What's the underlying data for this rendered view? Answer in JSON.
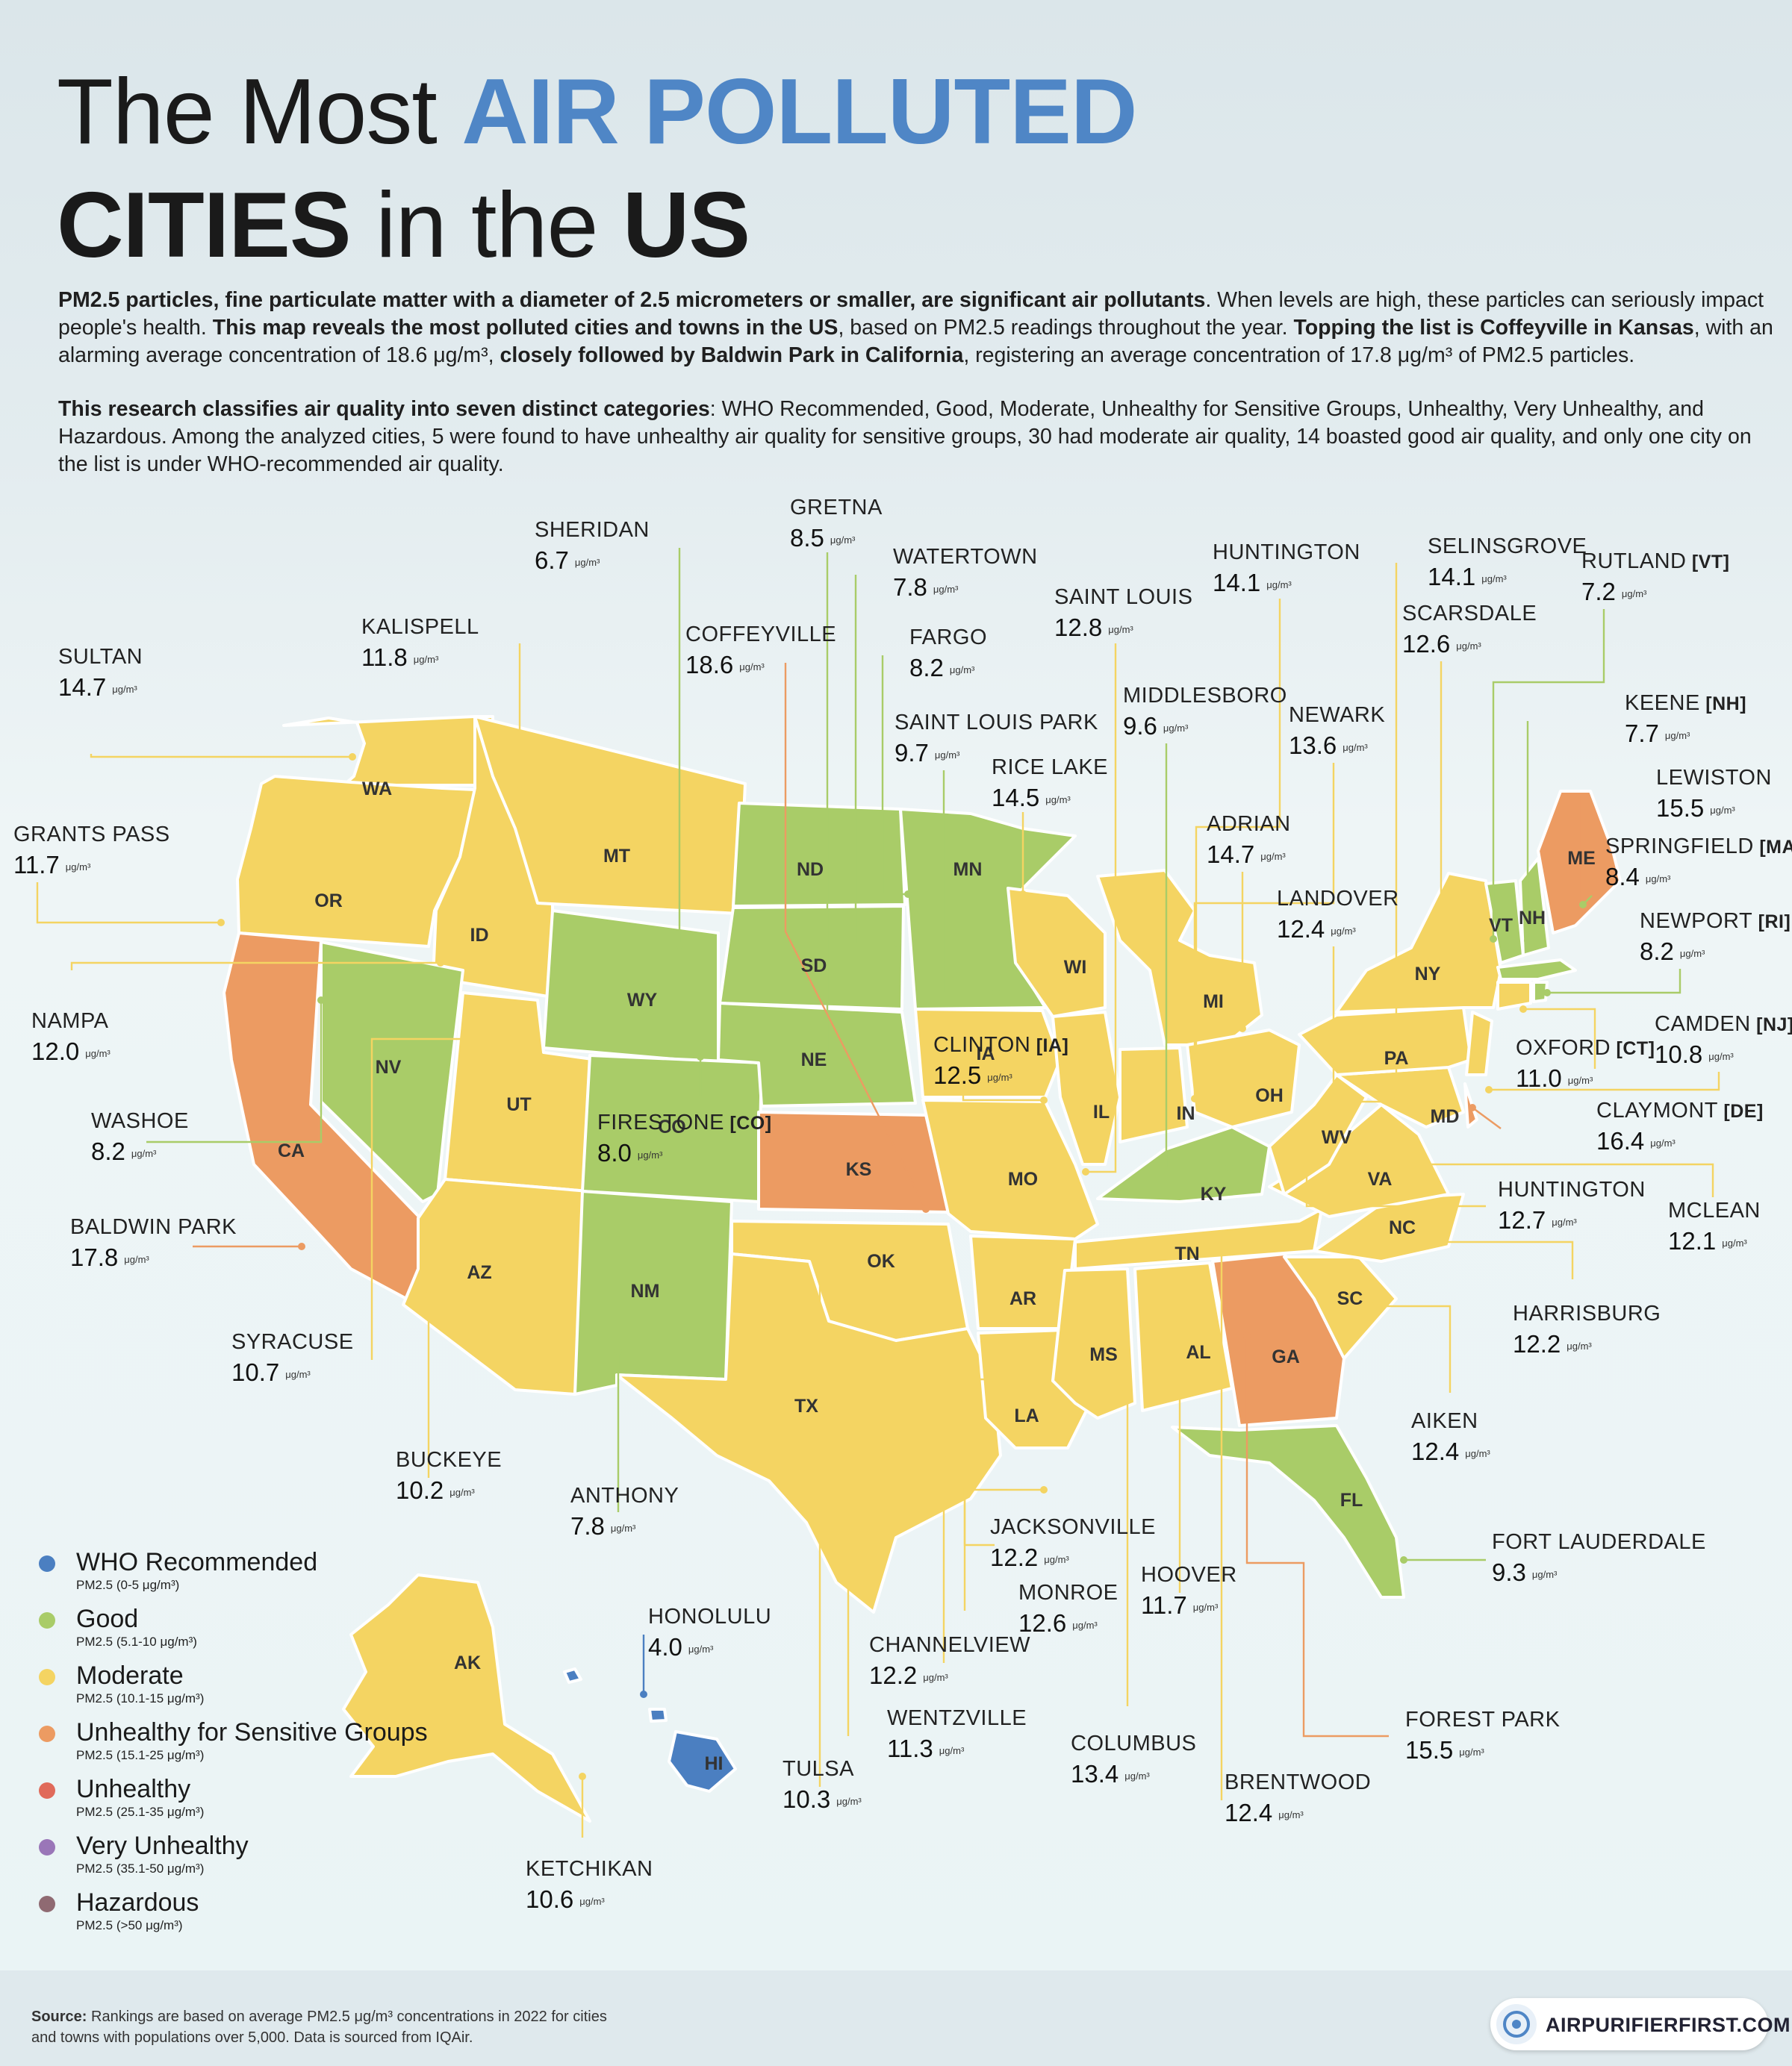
{
  "title": {
    "part1": "The Most",
    "part2": "AIR POLLUTED",
    "part3": "CITIES",
    "part4": "in the",
    "part5": "US"
  },
  "intro": {
    "p1a": "PM2.5 particles, fine particulate matter with a diameter of 2.5 micrometers or smaller, are significant air pollutants",
    "p1b": ". When levels are high, these particles can seriously impact people's health. ",
    "p1c": "This map reveals the most polluted cities and towns in the US",
    "p1d": ", based on PM2.5 readings throughout the year. ",
    "p1e": "Topping the list is Coffeyville in Kansas",
    "p1f": ", with an alarming average concentration of 18.6 μg/m³, ",
    "p1g": "closely followed by Baldwin Park in California",
    "p1h": ", registering an average concentration of 17.8 μg/m³ of PM2.5 particles.",
    "p2a": "This research classifies air quality into seven distinct categories",
    "p2b": ": WHO Recommended, Good, Moderate, Unhealthy for Sensitive Groups, Unhealthy, Very Unhealthy, and Hazardous. Among the analyzed cities, 5 were found to have unhealthy air quality for sensitive groups, 30 had moderate air quality, 14 boasted good air quality, and only one city on the list is under WHO-recommended air quality."
  },
  "unit": "μg/m³",
  "category_colors": {
    "who": "#4b7fc1",
    "good": "#a9cc68",
    "moderate": "#f4d462",
    "usg": "#ec9b62",
    "unhealthy": "#e06a5a",
    "very_unhealthy": "#9a76b8",
    "hazardous": "#8f6a72"
  },
  "states": [
    {
      "abbr": "WA",
      "category": "moderate"
    },
    {
      "abbr": "OR",
      "category": "moderate"
    },
    {
      "abbr": "CA",
      "category": "usg"
    },
    {
      "abbr": "ID",
      "category": "moderate"
    },
    {
      "abbr": "NV",
      "category": "good"
    },
    {
      "abbr": "MT",
      "category": "moderate"
    },
    {
      "abbr": "WY",
      "category": "good"
    },
    {
      "abbr": "UT",
      "category": "moderate"
    },
    {
      "abbr": "AZ",
      "category": "moderate"
    },
    {
      "abbr": "CO",
      "category": "good"
    },
    {
      "abbr": "NM",
      "category": "good"
    },
    {
      "abbr": "ND",
      "category": "good"
    },
    {
      "abbr": "SD",
      "category": "good"
    },
    {
      "abbr": "NE",
      "category": "good"
    },
    {
      "abbr": "KS",
      "category": "usg"
    },
    {
      "abbr": "OK",
      "category": "moderate"
    },
    {
      "abbr": "TX",
      "category": "moderate"
    },
    {
      "abbr": "MN",
      "category": "good"
    },
    {
      "abbr": "IA",
      "category": "moderate"
    },
    {
      "abbr": "MO",
      "category": "moderate"
    },
    {
      "abbr": "AR",
      "category": "moderate"
    },
    {
      "abbr": "LA",
      "category": "moderate"
    },
    {
      "abbr": "WI",
      "category": "moderate"
    },
    {
      "abbr": "IL",
      "category": "moderate"
    },
    {
      "abbr": "MI",
      "category": "moderate"
    },
    {
      "abbr": "IN",
      "category": "moderate"
    },
    {
      "abbr": "OH",
      "category": "moderate"
    },
    {
      "abbr": "KY",
      "category": "good"
    },
    {
      "abbr": "TN",
      "category": "moderate"
    },
    {
      "abbr": "MS",
      "category": "moderate"
    },
    {
      "abbr": "AL",
      "category": "moderate"
    },
    {
      "abbr": "GA",
      "category": "usg"
    },
    {
      "abbr": "FL",
      "category": "good"
    },
    {
      "abbr": "SC",
      "category": "moderate"
    },
    {
      "abbr": "NC",
      "category": "moderate"
    },
    {
      "abbr": "VA",
      "category": "moderate"
    },
    {
      "abbr": "WV",
      "category": "moderate"
    },
    {
      "abbr": "MD",
      "category": "moderate"
    },
    {
      "abbr": "DE",
      "category": "usg"
    },
    {
      "abbr": "PA",
      "category": "moderate"
    },
    {
      "abbr": "NY",
      "category": "moderate"
    },
    {
      "abbr": "VT",
      "category": "good"
    },
    {
      "abbr": "NH",
      "category": "good"
    },
    {
      "abbr": "ME",
      "category": "usg"
    },
    {
      "abbr": "MA",
      "category": "good"
    },
    {
      "abbr": "CT",
      "category": "moderate"
    },
    {
      "abbr": "RI",
      "category": "good"
    },
    {
      "abbr": "NJ",
      "category": "moderate"
    },
    {
      "abbr": "AK",
      "category": "moderate"
    },
    {
      "abbr": "HI",
      "category": "who"
    }
  ],
  "cities": [
    {
      "name": "SULTAN",
      "state": "",
      "value": "14.7",
      "category": "moderate"
    },
    {
      "name": "KALISPELL",
      "state": "",
      "value": "11.8",
      "category": "moderate"
    },
    {
      "name": "SHERIDAN",
      "state": "",
      "value": "6.7",
      "category": "good"
    },
    {
      "name": "GRETNA",
      "state": "",
      "value": "8.5",
      "category": "good"
    },
    {
      "name": "COFFEYVILLE",
      "state": "",
      "value": "18.6",
      "category": "usg"
    },
    {
      "name": "WATERTOWN",
      "state": "",
      "value": "7.8",
      "category": "good"
    },
    {
      "name": "FARGO",
      "state": "",
      "value": "8.2",
      "category": "good"
    },
    {
      "name": "SAINT LOUIS PARK",
      "state": "",
      "value": "9.7",
      "category": "good"
    },
    {
      "name": "RICE LAKE",
      "state": "",
      "value": "14.5",
      "category": "moderate"
    },
    {
      "name": "SAINT LOUIS",
      "state": "",
      "value": "12.8",
      "category": "moderate"
    },
    {
      "name": "HUNTINGTON",
      "state": "",
      "value": "14.1",
      "category": "moderate"
    },
    {
      "name": "SELINSGROVE",
      "state": "",
      "value": "14.1",
      "category": "moderate"
    },
    {
      "name": "RUTLAND",
      "state": "[VT]",
      "value": "7.2",
      "category": "good"
    },
    {
      "name": "SCARSDALE",
      "state": "",
      "value": "12.6",
      "category": "moderate"
    },
    {
      "name": "MIDDLESBORO",
      "state": "",
      "value": "9.6",
      "category": "good"
    },
    {
      "name": "NEWARK",
      "state": "",
      "value": "13.6",
      "category": "moderate"
    },
    {
      "name": "KEENE",
      "state": "[NH]",
      "value": "7.7",
      "category": "good"
    },
    {
      "name": "LEWISTON",
      "state": "",
      "value": "15.5",
      "category": "usg"
    },
    {
      "name": "SPRINGFIELD",
      "state": "[MA]",
      "value": "8.4",
      "category": "good"
    },
    {
      "name": "GRANTS PASS",
      "state": "",
      "value": "11.7",
      "category": "moderate"
    },
    {
      "name": "ADRIAN",
      "state": "",
      "value": "14.7",
      "category": "moderate"
    },
    {
      "name": "LANDOVER",
      "state": "",
      "value": "12.4",
      "category": "moderate"
    },
    {
      "name": "NEWPORT",
      "state": "[RI]",
      "value": "8.2",
      "category": "good"
    },
    {
      "name": "NAMPA",
      "state": "",
      "value": "12.0",
      "category": "moderate"
    },
    {
      "name": "CAMDEN",
      "state": "[NJ]",
      "value": "10.8",
      "category": "moderate"
    },
    {
      "name": "CLINTON",
      "state": "[IA]",
      "value": "12.5",
      "category": "moderate"
    },
    {
      "name": "OXFORD",
      "state": "[CT]",
      "value": "11.0",
      "category": "moderate"
    },
    {
      "name": "FIRESTONE",
      "state": "[CO]",
      "value": "8.0",
      "category": "good"
    },
    {
      "name": "CLAYMONT",
      "state": "[DE]",
      "value": "16.4",
      "category": "usg"
    },
    {
      "name": "WASHOE",
      "state": "",
      "value": "8.2",
      "category": "good"
    },
    {
      "name": "HUNTINGTON",
      "state": "",
      "value": "12.7",
      "category": "moderate"
    },
    {
      "name": "MCLEAN",
      "state": "",
      "value": "12.1",
      "category": "moderate"
    },
    {
      "name": "BALDWIN PARK",
      "state": "",
      "value": "17.8",
      "category": "usg"
    },
    {
      "name": "HARRISBURG",
      "state": "",
      "value": "12.2",
      "category": "moderate"
    },
    {
      "name": "SYRACUSE",
      "state": "",
      "value": "10.7",
      "category": "moderate"
    },
    {
      "name": "AIKEN",
      "state": "",
      "value": "12.4",
      "category": "moderate"
    },
    {
      "name": "BUCKEYE",
      "state": "",
      "value": "10.2",
      "category": "moderate"
    },
    {
      "name": "ANTHONY",
      "state": "",
      "value": "7.8",
      "category": "good"
    },
    {
      "name": "JACKSONVILLE",
      "state": "",
      "value": "12.2",
      "category": "moderate"
    },
    {
      "name": "FORT LAUDERDALE",
      "state": "",
      "value": "9.3",
      "category": "good"
    },
    {
      "name": "HOOVER",
      "state": "",
      "value": "11.7",
      "category": "moderate"
    },
    {
      "name": "MONROE",
      "state": "",
      "value": "12.6",
      "category": "moderate"
    },
    {
      "name": "HONOLULU",
      "state": "",
      "value": "4.0",
      "category": "who"
    },
    {
      "name": "CHANNELVIEW",
      "state": "",
      "value": "12.2",
      "category": "moderate"
    },
    {
      "name": "WENTZVILLE",
      "state": "",
      "value": "11.3",
      "category": "moderate"
    },
    {
      "name": "FOREST PARK",
      "state": "",
      "value": "15.5",
      "category": "usg"
    },
    {
      "name": "COLUMBUS",
      "state": "",
      "value": "13.4",
      "category": "moderate"
    },
    {
      "name": "TULSA",
      "state": "",
      "value": "10.3",
      "category": "moderate"
    },
    {
      "name": "BRENTWOOD",
      "state": "",
      "value": "12.4",
      "category": "moderate"
    },
    {
      "name": "KETCHIKAN",
      "state": "",
      "value": "10.6",
      "category": "moderate"
    }
  ],
  "legend": [
    {
      "name": "WHO Recommended",
      "range": "PM2.5 (0-5 μg/m³)",
      "color": "#4b7fc1"
    },
    {
      "name": "Good",
      "range": "PM2.5 (5.1-10 μg/m³)",
      "color": "#a9cc68"
    },
    {
      "name": "Moderate",
      "range": "PM2.5 (10.1-15 μg/m³)",
      "color": "#f4d462"
    },
    {
      "name": "Unhealthy for Sensitive Groups",
      "range": "PM2.5 (15.1-25 μg/m³)",
      "color": "#ec9b62"
    },
    {
      "name": "Unhealthy",
      "range": "PM2.5 (25.1-35 μg/m³)",
      "color": "#e06a5a"
    },
    {
      "name": "Very Unhealthy",
      "range": "PM2.5 (35.1-50 μg/m³)",
      "color": "#9a76b8"
    },
    {
      "name": "Hazardous",
      "range": "PM2.5 (>50 μg/m³)",
      "color": "#8f6a72"
    }
  ],
  "source": {
    "label": "Source:",
    "line1": " Rankings are based on average PM2.5 μg/m³ concentrations in 2022 for cities",
    "line2": "and towns with populations over 5,000. Data is sourced from IQAir."
  },
  "brand": {
    "name": "AIRPURIFIERFIRST.COM"
  }
}
